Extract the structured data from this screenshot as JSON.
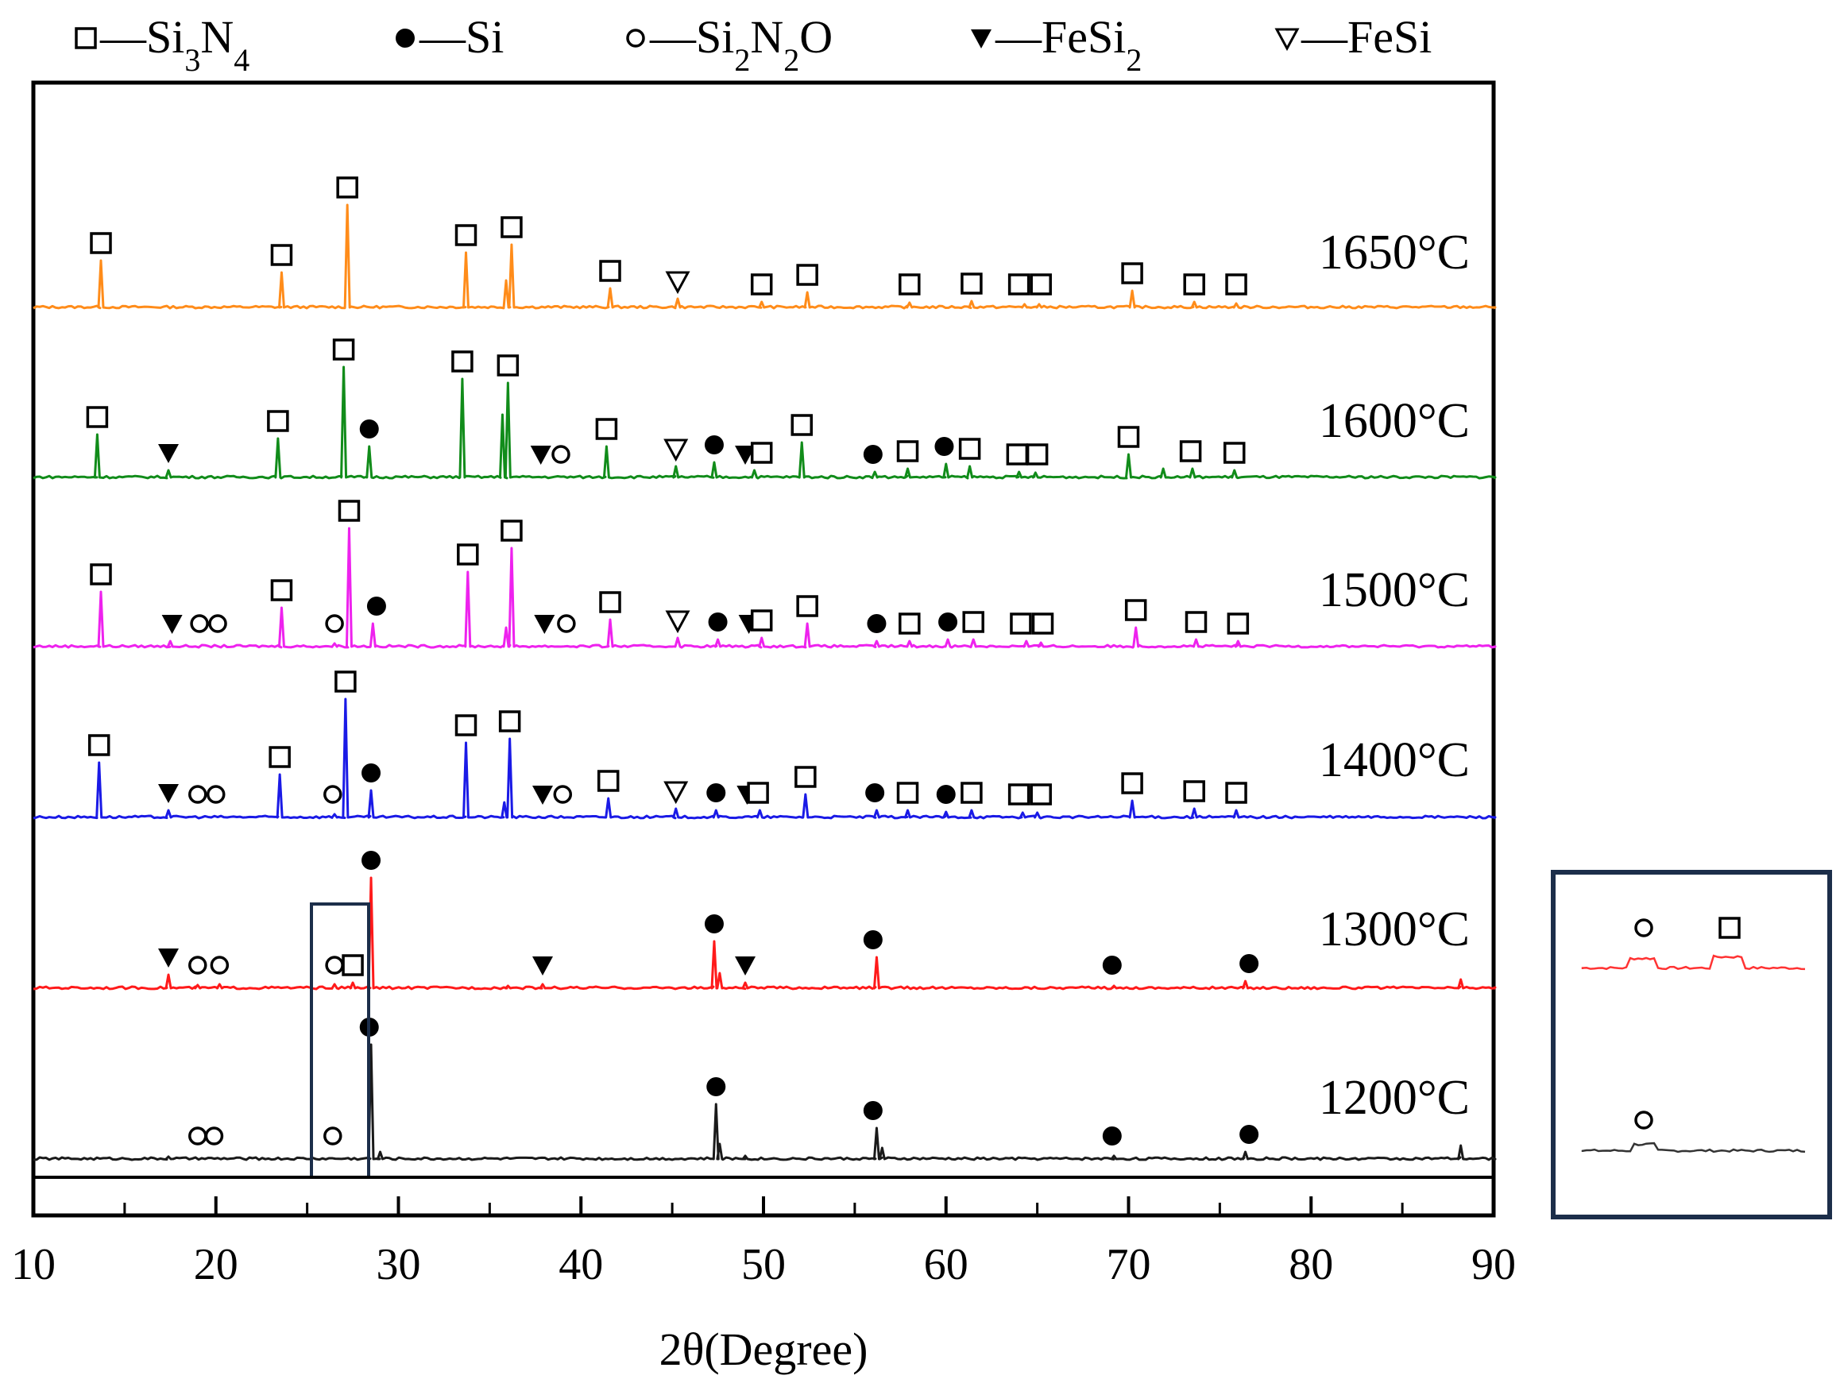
{
  "chart_data": {
    "type": "line",
    "title": "",
    "xlabel": "2θ(Degree)",
    "ylabel": "",
    "xlim": [
      10,
      90
    ],
    "xticks": [
      "10",
      "20",
      "30",
      "40",
      "50",
      "60",
      "70",
      "80",
      "90"
    ],
    "legend": {
      "placement": "top",
      "entries": [
        {
          "symbol": "open-square",
          "prefix": "—",
          "name": "Si",
          "sub1": "3",
          "mid": "N",
          "sub2": "4",
          "tail": ""
        },
        {
          "symbol": "filled-circle",
          "prefix": "—",
          "name": "Si",
          "sub1": "",
          "mid": "",
          "sub2": "",
          "tail": ""
        },
        {
          "symbol": "open-circle",
          "prefix": "—",
          "name": "Si",
          "sub1": "2",
          "mid": "N",
          "sub2": "2",
          "tail": "O"
        },
        {
          "symbol": "filled-triangle",
          "prefix": "—",
          "name": "FeSi",
          "sub1": "2",
          "mid": "",
          "sub2": "",
          "tail": ""
        },
        {
          "symbol": "open-triangle",
          "prefix": "—",
          "name": "FeSi",
          "sub1": "",
          "mid": "",
          "sub2": "",
          "tail": ""
        }
      ]
    },
    "series": [
      {
        "name": "1650°C",
        "color": "#ff8c1a",
        "peaks": [
          [
            13.7,
            60
          ],
          [
            23.6,
            45
          ],
          [
            27.2,
            130
          ],
          [
            33.7,
            70
          ],
          [
            35.9,
            35
          ],
          [
            36.2,
            80
          ],
          [
            41.6,
            25
          ],
          [
            45.3,
            12
          ],
          [
            49.9,
            8
          ],
          [
            52.4,
            20
          ],
          [
            58,
            7
          ],
          [
            61.4,
            9
          ],
          [
            64.3,
            5
          ],
          [
            65.1,
            5
          ],
          [
            70.2,
            22
          ],
          [
            73.6,
            8
          ],
          [
            75.9,
            6
          ]
        ],
        "markers": [
          [
            "sq",
            13.7
          ],
          [
            "sq",
            23.6
          ],
          [
            "sq",
            27.2
          ],
          [
            "sq",
            33.7
          ],
          [
            "sq",
            36.2
          ],
          [
            "sq",
            41.6
          ],
          [
            "ot",
            45.3
          ],
          [
            "sq",
            49.9
          ],
          [
            "sq",
            52.4
          ],
          [
            "sq",
            58
          ],
          [
            "sq",
            61.4
          ],
          [
            "sq",
            64.0
          ],
          [
            "sq",
            65.2
          ],
          [
            "sq",
            70.2
          ],
          [
            "sq",
            73.6
          ],
          [
            "sq",
            75.9
          ]
        ]
      },
      {
        "name": "1600°C",
        "color": "#118c1a",
        "peaks": [
          [
            13.5,
            55
          ],
          [
            17.4,
            10
          ],
          [
            23.4,
            50
          ],
          [
            27,
            140
          ],
          [
            28.4,
            40
          ],
          [
            33.5,
            125
          ],
          [
            35.7,
            80
          ],
          [
            36,
            120
          ],
          [
            41.4,
            40
          ],
          [
            45.2,
            15
          ],
          [
            47.3,
            20
          ],
          [
            49.5,
            10
          ],
          [
            52.1,
            45
          ],
          [
            56.1,
            8
          ],
          [
            57.9,
            12
          ],
          [
            60,
            18
          ],
          [
            61.3,
            15
          ],
          [
            64,
            8
          ],
          [
            64.9,
            7
          ],
          [
            70,
            30
          ],
          [
            71.9,
            12
          ],
          [
            73.5,
            12
          ],
          [
            75.8,
            10
          ]
        ],
        "markers": [
          [
            "sq",
            13.5
          ],
          [
            "ft",
            17.4
          ],
          [
            "sq",
            23.4
          ],
          [
            "sq",
            27.0
          ],
          [
            "fc",
            28.4
          ],
          [
            "sq",
            33.5
          ],
          [
            "sq",
            36.0
          ],
          [
            "ft",
            37.8
          ],
          [
            "oc",
            38.9
          ],
          [
            "sq",
            41.4
          ],
          [
            "ot",
            45.2
          ],
          [
            "fc",
            47.3
          ],
          [
            "ft",
            49.0
          ],
          [
            "sq",
            49.9
          ],
          [
            "sq",
            52.1
          ],
          [
            "fc",
            56.0
          ],
          [
            "sq",
            57.9
          ],
          [
            "fc",
            59.9
          ],
          [
            "sq",
            61.3
          ],
          [
            "sq",
            63.9
          ],
          [
            "sq",
            65.0
          ],
          [
            "sq",
            70.0
          ],
          [
            "sq",
            73.4
          ],
          [
            "sq",
            75.8
          ]
        ]
      },
      {
        "name": "1500°C",
        "color": "#ee22ee",
        "peaks": [
          [
            13.7,
            70
          ],
          [
            17.5,
            8
          ],
          [
            23.6,
            50
          ],
          [
            26.5,
            5
          ],
          [
            27.3,
            150
          ],
          [
            28.6,
            30
          ],
          [
            33.8,
            95
          ],
          [
            35.9,
            25
          ],
          [
            36.2,
            125
          ],
          [
            41.6,
            35
          ],
          [
            45.3,
            12
          ],
          [
            47.5,
            10
          ],
          [
            49.9,
            12
          ],
          [
            52.4,
            30
          ],
          [
            56.2,
            8
          ],
          [
            58,
            8
          ],
          [
            60.1,
            10
          ],
          [
            61.5,
            10
          ],
          [
            64.4,
            8
          ],
          [
            65.2,
            6
          ],
          [
            70.4,
            25
          ],
          [
            73.7,
            10
          ],
          [
            76,
            8
          ]
        ],
        "markers": [
          [
            "sq",
            13.7
          ],
          [
            "ft",
            17.6
          ],
          [
            "oc",
            19.1
          ],
          [
            "oc",
            20.1
          ],
          [
            "sq",
            23.6
          ],
          [
            "oc",
            26.5
          ],
          [
            "sq",
            27.3
          ],
          [
            "fc",
            28.8
          ],
          [
            "sq",
            33.8
          ],
          [
            "sq",
            36.2
          ],
          [
            "ft",
            38.0
          ],
          [
            "oc",
            39.2
          ],
          [
            "sq",
            41.6
          ],
          [
            "ot",
            45.3
          ],
          [
            "fc",
            47.5
          ],
          [
            "ft",
            49.2
          ],
          [
            "sq",
            49.9
          ],
          [
            "sq",
            52.4
          ],
          [
            "fc",
            56.2
          ],
          [
            "sq",
            58.0
          ],
          [
            "fc",
            60.1
          ],
          [
            "sq",
            61.5
          ],
          [
            "sq",
            64.1
          ],
          [
            "sq",
            65.3
          ],
          [
            "sq",
            70.4
          ],
          [
            "sq",
            73.7
          ],
          [
            "sq",
            76.0
          ]
        ]
      },
      {
        "name": "1400°C",
        "color": "#1a1ae6",
        "peaks": [
          [
            13.6,
            70
          ],
          [
            17.4,
            10
          ],
          [
            23.5,
            55
          ],
          [
            26.5,
            5
          ],
          [
            27.1,
            150
          ],
          [
            28.5,
            35
          ],
          [
            33.7,
            95
          ],
          [
            35.8,
            20
          ],
          [
            36.1,
            100
          ],
          [
            41.5,
            25
          ],
          [
            45.2,
            12
          ],
          [
            47.4,
            10
          ],
          [
            49.8,
            10
          ],
          [
            52.3,
            30
          ],
          [
            56.2,
            10
          ],
          [
            57.9,
            10
          ],
          [
            60,
            8
          ],
          [
            61.4,
            10
          ],
          [
            64.2,
            7
          ],
          [
            65,
            7
          ],
          [
            70.2,
            22
          ],
          [
            73.6,
            12
          ],
          [
            75.9,
            10
          ]
        ],
        "markers": [
          [
            "sq",
            13.6
          ],
          [
            "ft",
            17.4
          ],
          [
            "oc",
            19.0
          ],
          [
            "oc",
            20.0
          ],
          [
            "sq",
            23.5
          ],
          [
            "oc",
            26.4
          ],
          [
            "sq",
            27.1
          ],
          [
            "fc",
            28.5
          ],
          [
            "sq",
            33.7
          ],
          [
            "sq",
            36.1
          ],
          [
            "ft",
            37.9
          ],
          [
            "oc",
            39.0
          ],
          [
            "sq",
            41.5
          ],
          [
            "ot",
            45.2
          ],
          [
            "fc",
            47.4
          ],
          [
            "ft",
            49.1
          ],
          [
            "sq",
            49.7
          ],
          [
            "sq",
            52.3
          ],
          [
            "fc",
            56.1
          ],
          [
            "sq",
            57.9
          ],
          [
            "fc",
            60.0
          ],
          [
            "sq",
            61.4
          ],
          [
            "sq",
            64.0
          ],
          [
            "sq",
            65.2
          ],
          [
            "sq",
            70.2
          ],
          [
            "sq",
            73.6
          ],
          [
            "sq",
            75.9
          ]
        ]
      },
      {
        "name": "1300°C",
        "color": "#ff1a1a",
        "peaks": [
          [
            17.4,
            18
          ],
          [
            19,
            5
          ],
          [
            20.2,
            6
          ],
          [
            26.5,
            6
          ],
          [
            27.5,
            8
          ],
          [
            28.5,
            140
          ],
          [
            36,
            4
          ],
          [
            37.9,
            6
          ],
          [
            47.3,
            60
          ],
          [
            47.6,
            20
          ],
          [
            49,
            8
          ],
          [
            56.2,
            40
          ],
          [
            69.2,
            4
          ],
          [
            76.4,
            10
          ],
          [
            88.2,
            12
          ]
        ],
        "markers": [
          [
            "ft",
            17.4
          ],
          [
            "oc",
            19.0
          ],
          [
            "oc",
            20.2
          ],
          [
            "oc",
            26.5
          ],
          [
            "sq",
            27.5
          ],
          [
            "fc",
            28.5
          ],
          [
            "ft",
            37.9
          ],
          [
            "fc",
            47.3
          ],
          [
            "ft",
            49.0
          ],
          [
            "fc",
            56.0
          ],
          [
            "fc",
            69.1
          ],
          [
            "fc",
            76.6
          ]
        ]
      },
      {
        "name": "1200°C",
        "color": "#1a1a1a",
        "peaks": [
          [
            17.4,
            4
          ],
          [
            28.5,
            145
          ],
          [
            29,
            10
          ],
          [
            47.4,
            70
          ],
          [
            47.6,
            20
          ],
          [
            49,
            5
          ],
          [
            56.2,
            40
          ],
          [
            56.5,
            15
          ],
          [
            69.2,
            5
          ],
          [
            76.4,
            10
          ],
          [
            88.2,
            18
          ]
        ],
        "markers": [
          [
            "oc",
            19.0
          ],
          [
            "oc",
            19.9
          ],
          [
            "oc",
            26.4
          ],
          [
            "fc",
            28.4
          ],
          [
            "fc",
            47.4
          ],
          [
            "fc",
            56.0
          ],
          [
            "fc",
            69.1
          ],
          [
            "fc",
            76.6
          ]
        ]
      }
    ],
    "inset": {
      "description_label": "",
      "red_markers": [
        "oc",
        "sq"
      ],
      "black_markers": [
        "oc"
      ]
    }
  }
}
